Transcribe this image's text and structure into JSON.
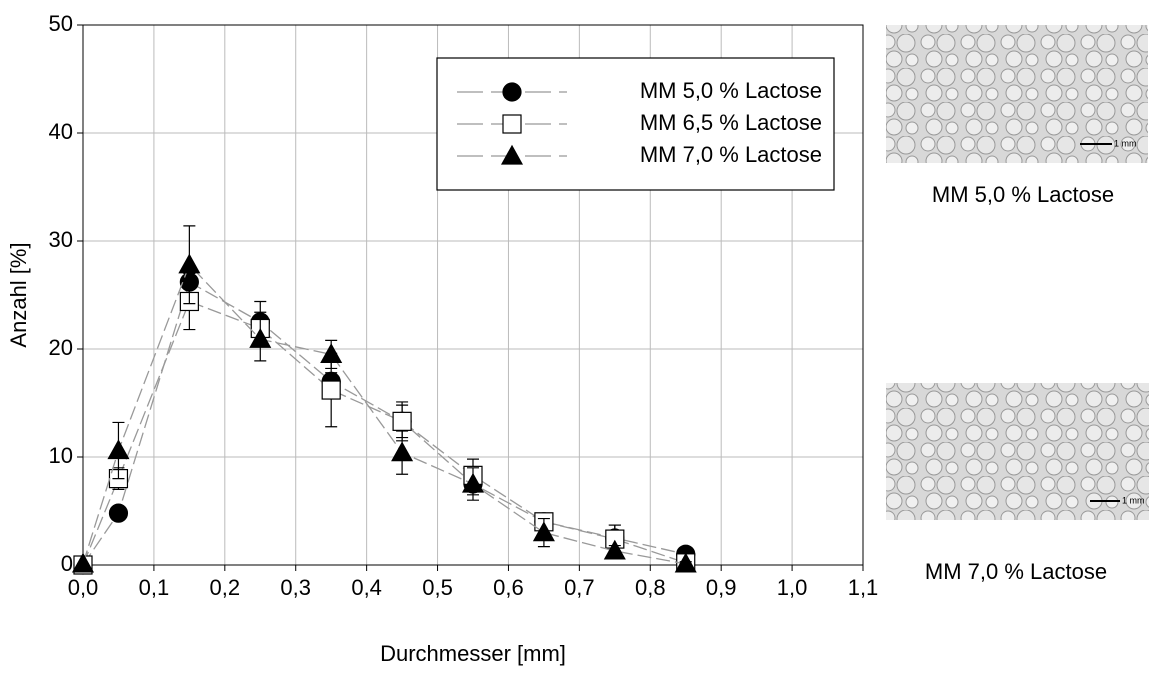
{
  "chart_data": {
    "type": "line",
    "xlabel": "Durchmesser [mm]",
    "ylabel": "Anzahl [%]",
    "x": [
      0,
      0.05,
      0.15,
      0.25,
      0.35,
      0.45,
      0.55,
      0.65,
      0.75,
      0.85
    ],
    "series": [
      {
        "name": "MM 5,0 % Lactose",
        "marker": "circle",
        "color": "#000000",
        "values": [
          0,
          4.8,
          26.2,
          22.5,
          17.0,
          13.3,
          7.5,
          4.0,
          2.5,
          1.0
        ],
        "errors": [
          0,
          0.5,
          1.5,
          1.9,
          0.8,
          1.5,
          1.0,
          0.5,
          1.2,
          0.3
        ]
      },
      {
        "name": "MM 6,5 % Lactose",
        "marker": "square",
        "color": "#ffffff",
        "values": [
          0,
          8.0,
          24.4,
          21.9,
          16.2,
          13.3,
          8.3,
          4.0,
          2.4,
          0.2
        ],
        "errors": [
          0,
          1.0,
          2.6,
          1.5,
          3.4,
          1.8,
          1.5,
          0.5,
          1.3,
          0.2
        ]
      },
      {
        "name": "MM 7,0 % Lactose",
        "marker": "triangle",
        "color": "#000000",
        "values": [
          0.1,
          10.6,
          27.8,
          20.9,
          19.5,
          10.4,
          7.5,
          3.0,
          1.3,
          0.1
        ],
        "errors": [
          0,
          2.6,
          3.6,
          2.0,
          1.3,
          2.0,
          1.5,
          1.3,
          0.5,
          0.2
        ]
      }
    ],
    "line_color": "#999999",
    "xlim": [
      0,
      1.1
    ],
    "ylim": [
      0,
      50
    ],
    "xticks": [
      {
        "value": 0,
        "label": "0,0"
      },
      {
        "value": 0.1,
        "label": "0,1"
      },
      {
        "value": 0.2,
        "label": "0,2"
      },
      {
        "value": 0.3,
        "label": "0,3"
      },
      {
        "value": 0.4,
        "label": "0,4"
      },
      {
        "value": 0.5,
        "label": "0,5"
      },
      {
        "value": 0.6,
        "label": "0,6"
      },
      {
        "value": 0.7,
        "label": "0,7"
      },
      {
        "value": 0.8,
        "label": "0,8"
      },
      {
        "value": 0.9,
        "label": "0,9"
      },
      {
        "value": 1.0,
        "label": "1,0"
      },
      {
        "value": 1.1,
        "label": "1,1"
      }
    ],
    "yticks": [
      0,
      10,
      20,
      30,
      40,
      50
    ],
    "grid": true,
    "legend": "upper right"
  },
  "images": [
    {
      "caption": "MM 5,0 % Lactose",
      "scale": "1 mm"
    },
    {
      "caption": "MM 7,0 % Lactose",
      "scale": "1 mm"
    }
  ]
}
